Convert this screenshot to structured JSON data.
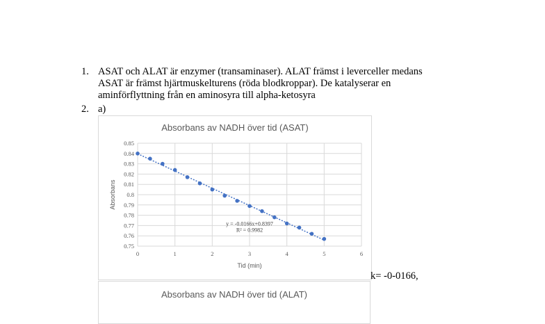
{
  "document": {
    "items": [
      {
        "number": "1.",
        "lines": [
          "ASAT och ALAT är enzymer (transaminaser). ALAT främst i leverceller medans",
          "ASAT är främst hjärtmuskelturens (röda blodkroppar). De katalyserar en",
          "aminförflyttning från en aminosyra till alpha-ketosyra"
        ]
      },
      {
        "number": "2.",
        "lines": [
          "a)"
        ]
      }
    ],
    "k_note": "k= -0-0166,"
  },
  "chart_data": [
    {
      "type": "scatter",
      "title": "Absorbans av NADH över tid (ASAT)",
      "xlabel": "Tid (min)",
      "ylabel": "Absorbans",
      "xlim": [
        0,
        6
      ],
      "ylim": [
        0.75,
        0.85
      ],
      "x_ticks": [
        "0",
        "1",
        "2",
        "3",
        "4",
        "5",
        "6"
      ],
      "y_ticks": [
        "0.85",
        "0.84",
        "0.83",
        "0.82",
        "0.81",
        "0.8",
        "0.79",
        "0.78",
        "0.77",
        "0.76",
        "0.75"
      ],
      "grid": true,
      "trendline": "linear",
      "trendline_equation": "y = -0.0166x+0.8397",
      "trendline_r2": "R² = 0.9982",
      "series": [
        {
          "x": [
            0,
            0.333,
            0.667,
            1,
            1.333,
            1.667,
            2,
            2.333,
            2.667,
            3,
            3.333,
            3.667,
            4,
            4.333,
            4.667,
            5
          ],
          "y": [
            0.84,
            0.835,
            0.83,
            0.824,
            0.817,
            0.811,
            0.805,
            0.799,
            0.794,
            0.789,
            0.784,
            0.778,
            0.772,
            0.768,
            0.762,
            0.757
          ]
        }
      ],
      "color": "#4472c4"
    },
    {
      "type": "scatter",
      "title": "Absorbans av NADH över tid (ALAT)"
    }
  ]
}
